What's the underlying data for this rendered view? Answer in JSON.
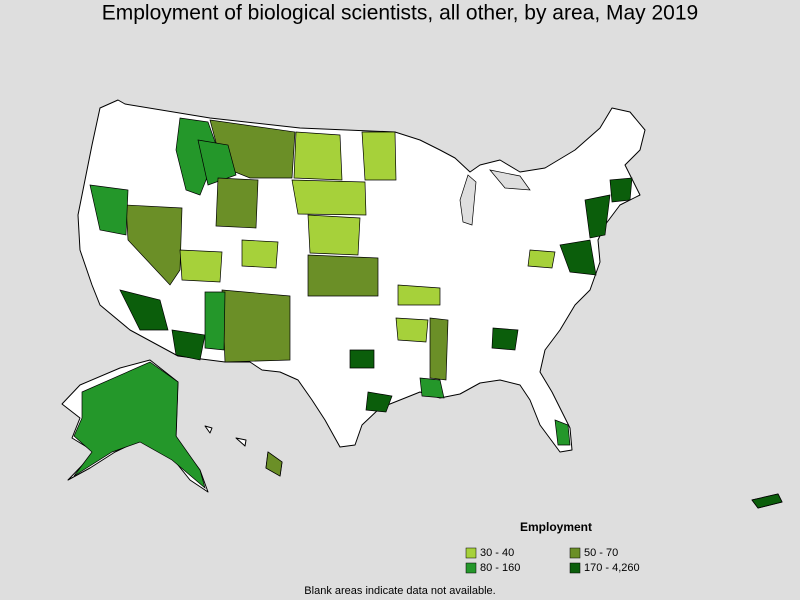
{
  "title": "Employment of biological scientists, all other, by area, May 2019",
  "legend": {
    "title": "Employment",
    "items": [
      {
        "label": "30 - 40",
        "color": "#a6d13a"
      },
      {
        "label": "50 - 70",
        "color": "#6b8f27"
      },
      {
        "label": "80 - 160",
        "color": "#24972a"
      },
      {
        "label": "170 - 4,260",
        "color": "#0b5e0b"
      }
    ]
  },
  "footnote": "Blank areas indicate data not available."
}
